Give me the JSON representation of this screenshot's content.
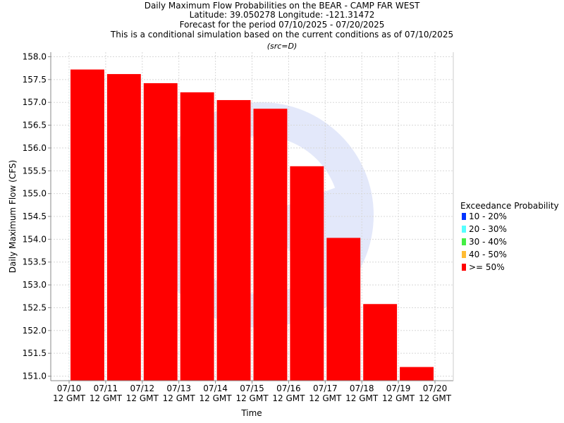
{
  "chart_data": {
    "type": "bar",
    "title": "Daily Maximum Flow Probabilities on the BEAR - CAMP FAR WEST",
    "subtitles": [
      "Latitude: 39.050278 Longitude: -121.31472",
      "Forecast for the period 07/10/2025 - 07/20/2025",
      "This is a conditional simulation based on the current conditions as of 07/10/2025"
    ],
    "source_note": "(src=D)",
    "xlabel": "Time",
    "ylabel": "Daily Maximum Flow (CFS)",
    "ylim": [
      150.9,
      158.1
    ],
    "y_ticks": [
      "151.0",
      "151.5",
      "152.0",
      "152.5",
      "153.0",
      "153.5",
      "154.0",
      "154.5",
      "155.0",
      "155.5",
      "156.0",
      "156.5",
      "157.0",
      "157.5",
      "158.0"
    ],
    "x_ticks": [
      {
        "date": "07/10",
        "time": "12 GMT"
      },
      {
        "date": "07/11",
        "time": "12 GMT"
      },
      {
        "date": "07/12",
        "time": "12 GMT"
      },
      {
        "date": "07/13",
        "time": "12 GMT"
      },
      {
        "date": "07/14",
        "time": "12 GMT"
      },
      {
        "date": "07/15",
        "time": "12 GMT"
      },
      {
        "date": "07/16",
        "time": "12 GMT"
      },
      {
        "date": "07/17",
        "time": "12 GMT"
      },
      {
        "date": "07/18",
        "time": "12 GMT"
      },
      {
        "date": "07/19",
        "time": "12 GMT"
      },
      {
        "date": "07/20",
        "time": "12 GMT"
      }
    ],
    "grid": true,
    "legend": {
      "title": "Exceedance Probability",
      "placement": "right",
      "items": [
        {
          "label": "10 - 20%",
          "color": "#0033ff"
        },
        {
          "label": "20 - 30%",
          "color": "#55ffff"
        },
        {
          "label": "30 - 40%",
          "color": "#44ee44"
        },
        {
          "label": "40 - 50%",
          "color": "#ffbb33"
        },
        {
          "label": ">= 50%",
          "color": "#ff0000"
        }
      ]
    },
    "series": [
      {
        "name": ">= 50%",
        "color": "#ff0000",
        "values": [
          157.72,
          157.62,
          157.42,
          157.22,
          157.05,
          156.86,
          155.6,
          154.03,
          152.58,
          151.2
        ]
      }
    ]
  }
}
